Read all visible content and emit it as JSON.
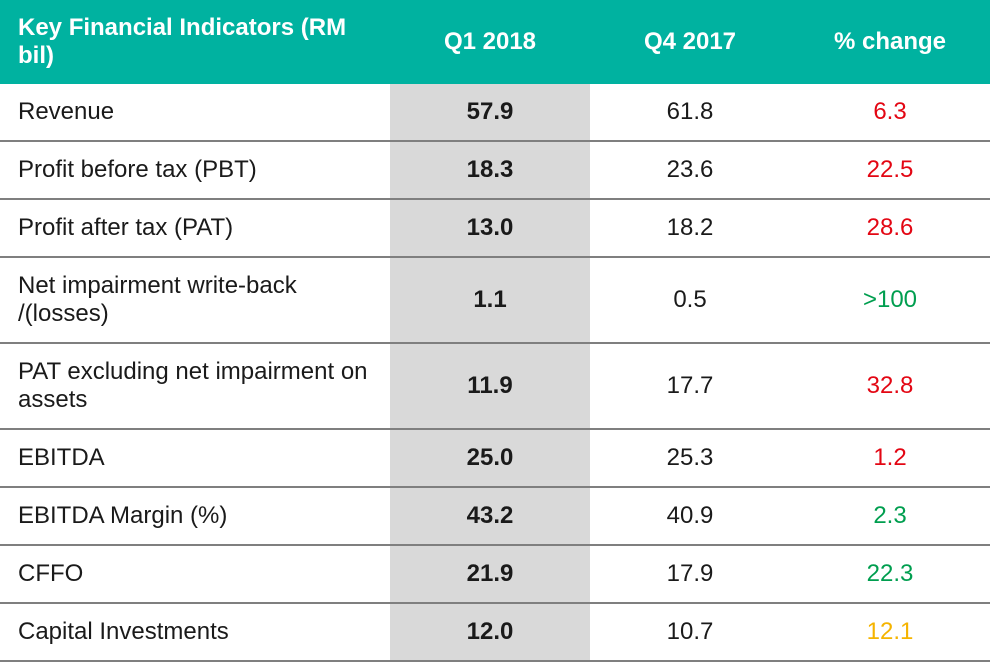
{
  "table": {
    "type": "table",
    "header_bg": "#00b2a0",
    "header_fg": "#ffffff",
    "body_fg": "#1a1a1a",
    "q1_col_bg": "#d9d9d9",
    "row_border_color": "#7f7f7f",
    "neg_color": "#e30613",
    "pos_color": "#009e4f",
    "neutral_color": "#f5b400",
    "columns": {
      "label": "Key Financial Indicators (RM bil)",
      "q1": "Q1 2018",
      "q4": "Q4 2017",
      "chg": "% change"
    },
    "rows": [
      {
        "label": "Revenue",
        "q1": "57.9",
        "q4": "61.8",
        "chg": "6.3",
        "chg_dir": "neg"
      },
      {
        "label": "Profit before tax (PBT)",
        "q1": "18.3",
        "q4": "23.6",
        "chg": "22.5",
        "chg_dir": "neg"
      },
      {
        "label": "Profit after tax (PAT)",
        "q1": "13.0",
        "q4": "18.2",
        "chg": "28.6",
        "chg_dir": "neg"
      },
      {
        "label": "Net impairment write-back /(losses)",
        "q1": "1.1",
        "q4": "0.5",
        "chg": ">100",
        "chg_dir": "pos"
      },
      {
        "label": "PAT excluding net impairment on assets",
        "q1": "11.9",
        "q4": "17.7",
        "chg": "32.8",
        "chg_dir": "neg"
      },
      {
        "label": "EBITDA",
        "q1": "25.0",
        "q4": "25.3",
        "chg": "1.2",
        "chg_dir": "neg"
      },
      {
        "label": "EBITDA Margin (%)",
        "q1": "43.2",
        "q4": "40.9",
        "chg": "2.3",
        "chg_dir": "pos"
      },
      {
        "label": "CFFO",
        "q1": "21.9",
        "q4": "17.9",
        "chg": "22.3",
        "chg_dir": "pos"
      },
      {
        "label": "Capital Investments",
        "q1": "12.0",
        "q4": "10.7",
        "chg": "12.1",
        "chg_dir": "neutral"
      }
    ]
  }
}
